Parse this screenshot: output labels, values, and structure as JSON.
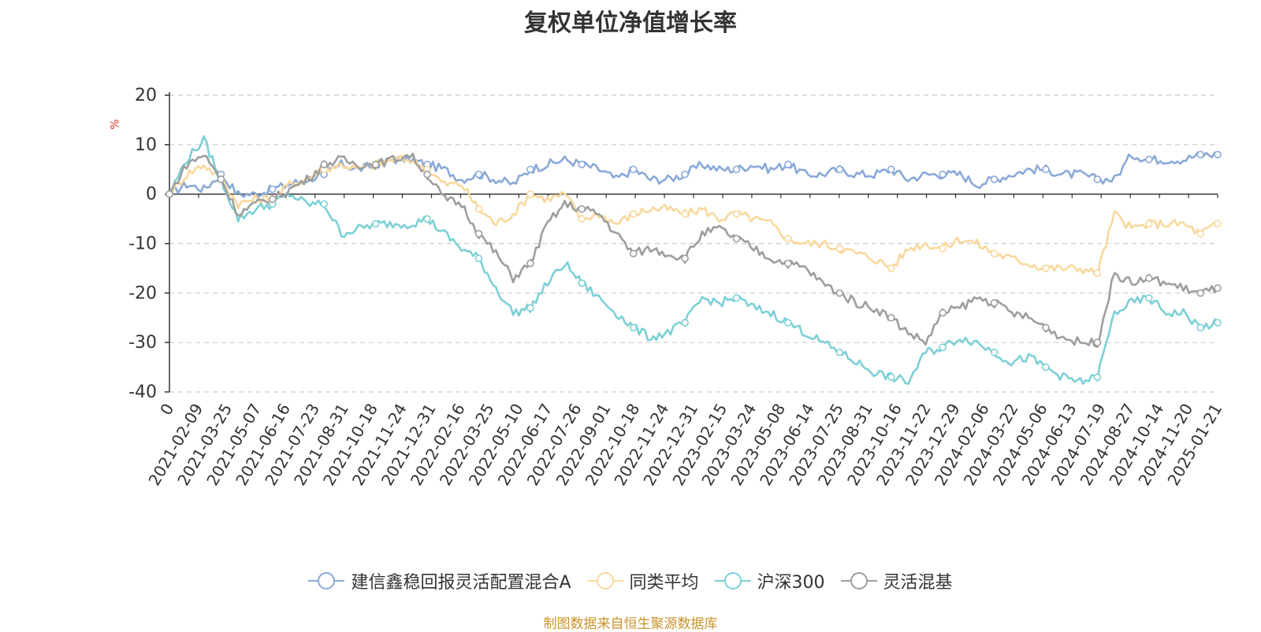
{
  "chart_data": {
    "type": "line",
    "title": "复权单位净值增长率",
    "ylabel": "%",
    "xlabel": "",
    "ylim": [
      -40,
      20
    ],
    "yticks": [
      20,
      10,
      0,
      -10,
      -20,
      -30,
      -40
    ],
    "grid": true,
    "legend_position": "bottom-center",
    "source_note": "制图数据来自恒生聚源数据库",
    "x_tick_labels": [
      "0",
      "2021-02-09",
      "2021-03-25",
      "2021-05-07",
      "2021-06-16",
      "2021-07-23",
      "2021-08-31",
      "2021-10-18",
      "2021-11-24",
      "2021-12-31",
      "2022-02-16",
      "2022-03-25",
      "2022-05-10",
      "2022-06-17",
      "2022-07-26",
      "2022-09-01",
      "2022-10-18",
      "2022-11-24",
      "2022-12-31",
      "2023-02-15",
      "2023-03-24",
      "2023-05-08",
      "2023-06-14",
      "2023-07-25",
      "2023-08-31",
      "2023-10-16",
      "2023-11-22",
      "2023-12-29",
      "2024-02-06",
      "2024-03-22",
      "2024-05-06",
      "2024-06-13",
      "2024-07-19",
      "2024-08-27",
      "2024-10-14",
      "2024-11-20",
      "2025-01-21"
    ],
    "series": [
      {
        "name": "建信鑫稳回报灵活配置混合A",
        "color": "#8aa9d8",
        "values": [
          0,
          2,
          1,
          4,
          0,
          0,
          1,
          2,
          3,
          4,
          6,
          5,
          6,
          7,
          7,
          6,
          5,
          3,
          4,
          3,
          2,
          5,
          6,
          7,
          6,
          5,
          3,
          5,
          3,
          3,
          4,
          6,
          5,
          5,
          6,
          5,
          6,
          4,
          4,
          5,
          4,
          4,
          5,
          3,
          4,
          4,
          4,
          2,
          3,
          4,
          5,
          5,
          4,
          4,
          3,
          3,
          8,
          7,
          7,
          7,
          8,
          8
        ]
      },
      {
        "name": "同类平均",
        "color": "#f9d89c",
        "values": [
          0,
          4,
          6,
          3,
          -2,
          -1,
          -1,
          2,
          3,
          5,
          6,
          5,
          6,
          7,
          7,
          5,
          2,
          2,
          -3,
          -6,
          -4,
          0,
          -1,
          0,
          -5,
          -4,
          -6,
          -4,
          -3,
          -3,
          -4,
          -3,
          -5,
          -4,
          -5,
          -6,
          -9,
          -10,
          -10,
          -11,
          -12,
          -13,
          -15,
          -11,
          -10,
          -11,
          -9,
          -10,
          -12,
          -13,
          -14,
          -15,
          -15,
          -15,
          -16,
          -4,
          -7,
          -6,
          -6,
          -6,
          -8,
          -6
        ]
      },
      {
        "name": "沪深300",
        "color": "#7dd0d6",
        "values": [
          0,
          7,
          11,
          3,
          -5,
          -3,
          -2,
          0,
          -2,
          -2,
          -8,
          -7,
          -6,
          -6,
          -6,
          -5,
          -8,
          -11,
          -13,
          -19,
          -24,
          -23,
          -18,
          -14,
          -18,
          -21,
          -24,
          -27,
          -29,
          -28,
          -26,
          -21,
          -22,
          -21,
          -23,
          -24,
          -26,
          -28,
          -30,
          -32,
          -34,
          -36,
          -37,
          -38,
          -32,
          -31,
          -29,
          -30,
          -32,
          -34,
          -33,
          -35,
          -37,
          -38,
          -37,
          -24,
          -22,
          -21,
          -24,
          -24,
          -27,
          -26
        ]
      },
      {
        "name": "灵活混基",
        "color": "#9e9e9e",
        "values": [
          0,
          6,
          8,
          3,
          -4,
          -2,
          -1,
          1,
          3,
          6,
          7,
          6,
          6,
          7,
          8,
          4,
          -1,
          -2,
          -8,
          -12,
          -17,
          -14,
          -6,
          -2,
          -3,
          -4,
          -8,
          -12,
          -11,
          -12,
          -13,
          -8,
          -7,
          -9,
          -11,
          -13,
          -14,
          -15,
          -18,
          -20,
          -22,
          -23,
          -25,
          -28,
          -30,
          -24,
          -23,
          -21,
          -22,
          -24,
          -25,
          -27,
          -29,
          -30,
          -30,
          -16,
          -18,
          -17,
          -18,
          -19,
          -20,
          -19
        ]
      }
    ]
  }
}
